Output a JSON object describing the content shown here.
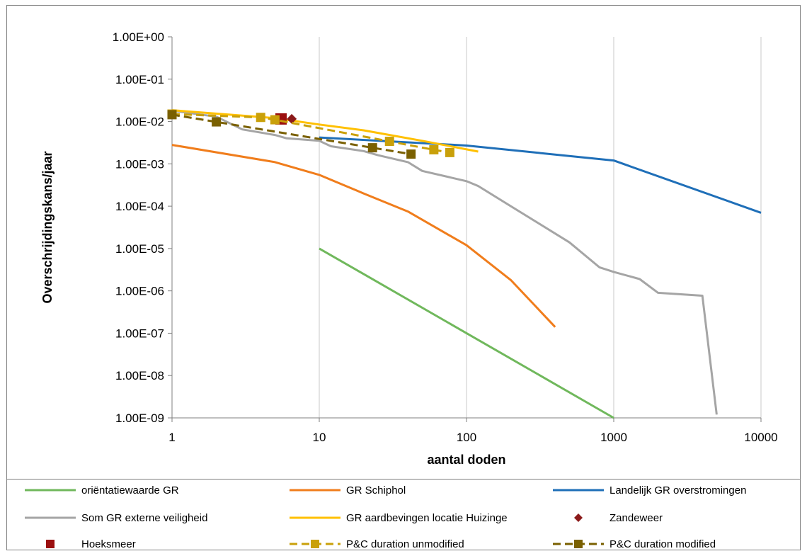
{
  "chart_data": {
    "type": "line",
    "title": "",
    "xlabel": "aantal doden",
    "ylabel": "Overschrijdingskans/jaar",
    "x_scale": "log",
    "y_scale": "log",
    "xlim": [
      1,
      10000
    ],
    "ylim": [
      1e-09,
      1
    ],
    "x_ticks": [
      1,
      10,
      100,
      1000,
      10000
    ],
    "x_tick_labels": [
      "1",
      "10",
      "100",
      "1000",
      "10000"
    ],
    "y_ticks": [
      1e-09,
      1e-08,
      1e-07,
      1e-06,
      1e-05,
      0.0001,
      0.001,
      0.01,
      0.1,
      1
    ],
    "y_tick_labels": [
      "1.00E-09",
      "1.00E-08",
      "1.00E-07",
      "1.00E-06",
      "1.00E-05",
      "1.00E-04",
      "1.00E-03",
      "1.00E-02",
      "1.00E-01",
      "1.00E+00"
    ],
    "grid": "vertical",
    "legend_position": "bottom",
    "series": [
      {
        "name": "oriëntatiewaarde GR",
        "color": "#70b85c",
        "style": "line",
        "x": [
          10,
          100,
          1000
        ],
        "y": [
          1e-05,
          1e-07,
          1e-09
        ]
      },
      {
        "name": "GR Schiphol",
        "color": "#f07d1c",
        "style": "line",
        "x": [
          1,
          5,
          10,
          20,
          40,
          100,
          200,
          400
        ],
        "y": [
          0.0028,
          0.0011,
          0.00055,
          0.0002,
          7.5e-05,
          1.2e-05,
          1.8e-06,
          1.4e-07
        ]
      },
      {
        "name": "Landelijk GR overstromingen",
        "color": "#1f6fb8",
        "style": "line",
        "x": [
          10,
          100,
          1000,
          10000
        ],
        "y": [
          0.0042,
          0.0027,
          0.0012,
          7e-05
        ]
      },
      {
        "name": "Som GR externe veiligheid",
        "color": "#a5a5a5",
        "style": "line",
        "x": [
          1,
          2,
          3,
          5,
          6,
          10,
          12,
          20,
          25,
          40,
          50,
          100,
          120,
          200,
          500,
          800,
          1000,
          1500,
          2000,
          4000,
          5000
        ],
        "y": [
          0.018,
          0.013,
          0.0065,
          0.0048,
          0.004,
          0.0035,
          0.0026,
          0.002,
          0.0016,
          0.0011,
          0.00068,
          0.00039,
          0.0003,
          0.0001,
          1.4e-05,
          3.6e-06,
          2.8e-06,
          1.9e-06,
          9e-07,
          7.7e-07,
          1.2e-09
        ]
      },
      {
        "name": "GR aardbevingen locatie Huizinge",
        "color": "#ffc000",
        "style": "line",
        "x": [
          1,
          5,
          10,
          20,
          50,
          120
        ],
        "y": [
          0.0185,
          0.012,
          0.0085,
          0.0062,
          0.0035,
          0.00195
        ]
      },
      {
        "name": "Zandeweer",
        "color": "#8b1a1a",
        "style": "diamond",
        "x": [
          6.5
        ],
        "y": [
          0.0115
        ]
      },
      {
        "name": "Hoeksmeer",
        "color": "#9b0f0f",
        "style": "square",
        "x": [
          5.5
        ],
        "y": [
          0.0115
        ]
      },
      {
        "name": "P&C duration unmodified",
        "color": "#c9a00a",
        "style": "dashed-square",
        "x": [
          1,
          4,
          5,
          30,
          60,
          77
        ],
        "y": [
          0.015,
          0.0125,
          0.011,
          0.0034,
          0.00215,
          0.00185
        ]
      },
      {
        "name": "P&C duration modified",
        "color": "#7a6000",
        "style": "dashed-square",
        "x": [
          1,
          2,
          23,
          42
        ],
        "y": [
          0.0145,
          0.0098,
          0.0024,
          0.0017
        ]
      }
    ]
  }
}
